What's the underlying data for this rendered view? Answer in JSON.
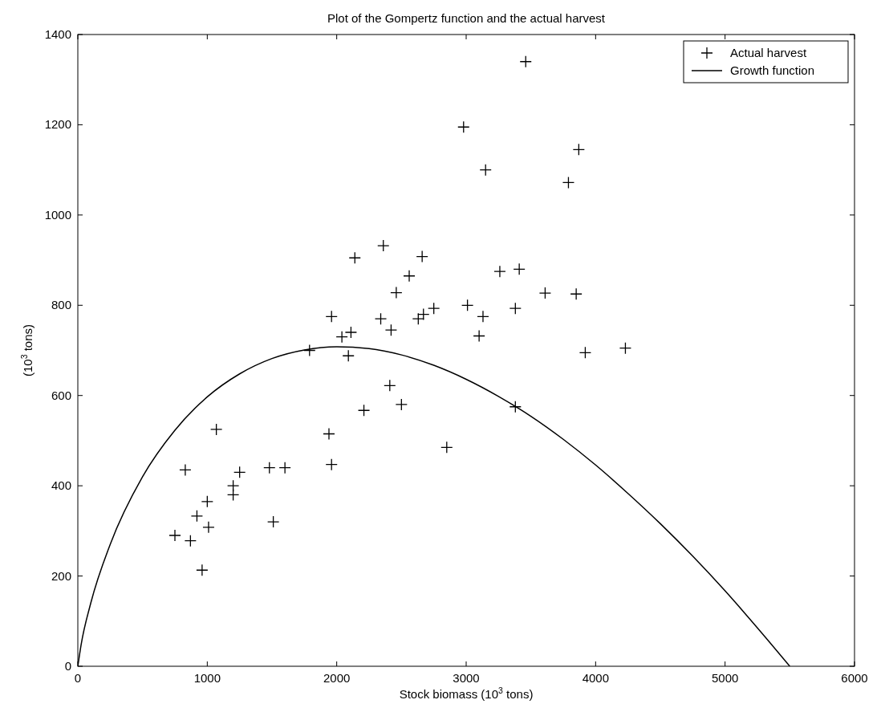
{
  "chart_data": {
    "type": "scatter",
    "title": "Plot of the Gompertz function and the actual harvest",
    "xlabel": "Stock biomass (10$^{3}$ tons)",
    "ylabel": "(10$^{3}$ tons)",
    "xlim": [
      0,
      6000
    ],
    "ylim": [
      0,
      1400
    ],
    "xticks": [
      0,
      1000,
      2000,
      3000,
      4000,
      5000,
      6000
    ],
    "yticks": [
      0,
      200,
      400,
      600,
      800,
      1000,
      1200,
      1400
    ],
    "grid": false,
    "legend": "top right",
    "series": [
      {
        "name": "Actual harvest",
        "marker": "cross",
        "color": "#000000",
        "x": [
          750,
          830,
          870,
          920,
          960,
          1000,
          1010,
          1070,
          1200,
          1200,
          1250,
          1480,
          1510,
          1600,
          1790,
          1940,
          1960,
          1960,
          2040,
          2090,
          2110,
          2140,
          2210,
          2340,
          2360,
          2410,
          2420,
          2460,
          2500,
          2560,
          2630,
          2660,
          2670,
          2750,
          2850,
          2980,
          3010,
          3100,
          3130,
          3150,
          3260,
          3380,
          3380,
          3410,
          3460,
          3610,
          3790,
          3850,
          3870,
          3920,
          4230
        ],
        "values": [
          290,
          435,
          278,
          333,
          213,
          365,
          308,
          525,
          380,
          400,
          430,
          440,
          320,
          440,
          700,
          515,
          775,
          447,
          730,
          688,
          740,
          905,
          567,
          770,
          932,
          622,
          745,
          828,
          580,
          865,
          770,
          908,
          780,
          793,
          485,
          1195,
          800,
          732,
          775,
          1100,
          875,
          575,
          793,
          880,
          1340,
          827,
          1072,
          825,
          1145,
          695,
          705
        ]
      },
      {
        "name": "Growth function",
        "type": "line",
        "marker": "none",
        "line_style": "solid",
        "color": "#000000",
        "x": [
          0,
          25,
          100,
          250,
          500,
          750,
          1000,
          1250,
          1500,
          1750,
          2000,
          2250,
          2500,
          2750,
          3000,
          3250,
          3500,
          3750,
          4000,
          4250,
          4500,
          4750,
          5000,
          5250,
          5500
        ],
        "values": [
          0,
          47,
          140,
          270,
          420,
          523,
          597,
          648,
          682,
          701,
          708,
          704,
          690,
          667,
          636,
          598,
          554,
          503,
          446,
          383,
          316,
          244,
          167,
          85,
          0
        ]
      }
    ]
  }
}
